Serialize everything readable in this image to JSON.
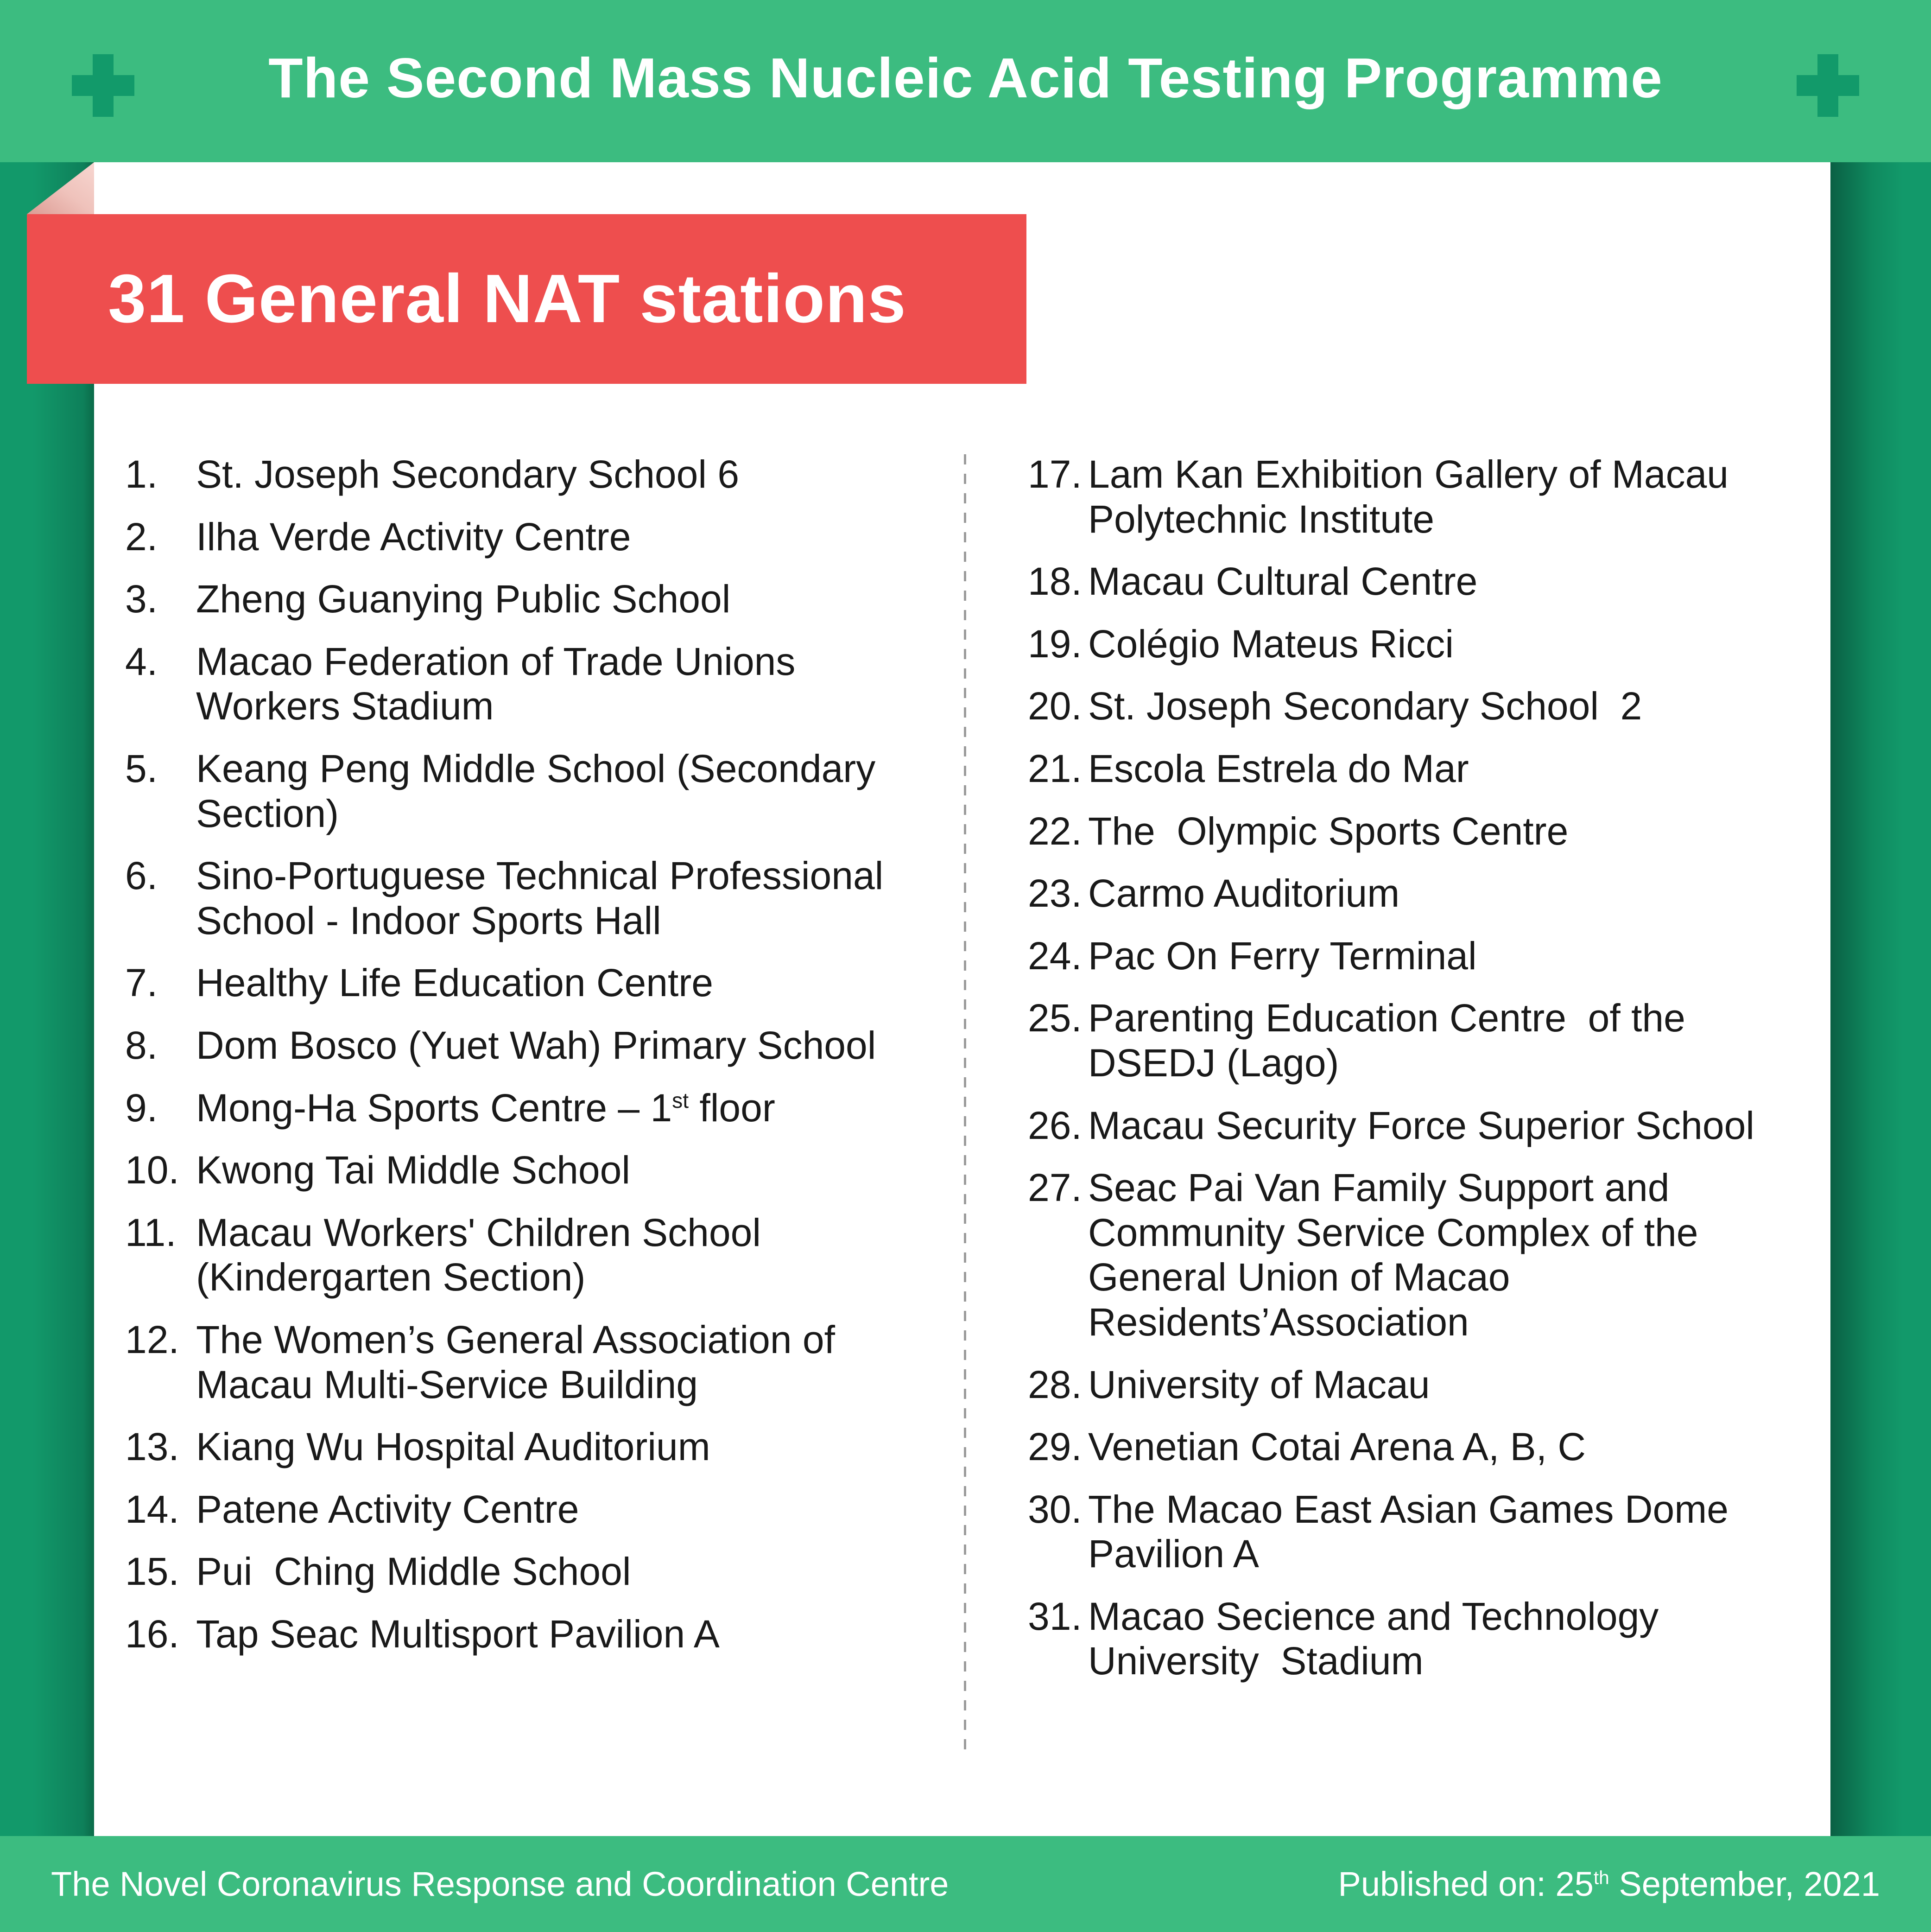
{
  "header": {
    "title": "The Second Mass Nucleic Acid Testing Programme"
  },
  "banner": {
    "title": "31 General NAT stations"
  },
  "list": {
    "left": [
      {
        "num": "1.",
        "text": "St. Joseph Secondary School 6"
      },
      {
        "num": "2.",
        "text": "Ilha Verde Activity Centre"
      },
      {
        "num": "3.",
        "text": "Zheng Guanying Public School"
      },
      {
        "num": "4.",
        "text": "Macao Federation of Trade Unions Workers Stadium"
      },
      {
        "num": "5.",
        "text": "Keang Peng Middle School (Secondary Section)"
      },
      {
        "num": "6.",
        "text": "Sino-Portuguese Technical Professional School - Indoor Sports Hall"
      },
      {
        "num": "7.",
        "text": "Healthy Life Education Centre"
      },
      {
        "num": "8.",
        "text": "Dom Bosco (Yuet Wah) Primary School"
      },
      {
        "num": "9.",
        "text": "Mong-Ha Sports Centre – 1^{st} floor"
      },
      {
        "num": "10.",
        "text": "Kwong Tai Middle School"
      },
      {
        "num": "11.",
        "text": "Macau Workers' Children School (Kindergarten Section)"
      },
      {
        "num": "12.",
        "text": "The Women’s General Association of Macau Multi-Service Building"
      },
      {
        "num": "13.",
        "text": "Kiang Wu Hospital Auditorium"
      },
      {
        "num": "14.",
        "text": "Patene Activity Centre"
      },
      {
        "num": "15.",
        "text": "Pui  Ching Middle School"
      },
      {
        "num": "16.",
        "text": "Tap Seac Multisport Pavilion A"
      }
    ],
    "right": [
      {
        "num": "17.",
        "text": "Lam Kan Exhibition Gallery of Macau Polytechnic Institute"
      },
      {
        "num": "18.",
        "text": "Macau Cultural Centre"
      },
      {
        "num": "19.",
        "text": "Colégio Mateus Ricci"
      },
      {
        "num": "20.",
        "text": "St. Joseph Secondary School  2"
      },
      {
        "num": "21.",
        "text": "Escola Estrela do Mar"
      },
      {
        "num": "22.",
        "text": "The  Olympic Sports Centre"
      },
      {
        "num": "23.",
        "text": "Carmo Auditorium"
      },
      {
        "num": "24.",
        "text": "Pac On Ferry Terminal"
      },
      {
        "num": "25.",
        "text": "Parenting Education Centre  of the DSEDJ (Lago)"
      },
      {
        "num": "26.",
        "text": "Macau Security Force Superior School"
      },
      {
        "num": "27.",
        "text": "Seac Pai Van Family Support and Community Service Complex of the General Union of Macao Residents’Association"
      },
      {
        "num": "28.",
        "text": "University of Macau"
      },
      {
        "num": "29.",
        "text": "Venetian Cotai Arena A, B, C"
      },
      {
        "num": "30.",
        "text": "The Macao East Asian Games Dome Pavilion A"
      },
      {
        "num": "31.",
        "text": "Macao Secience and Technology University  Stadium"
      }
    ]
  },
  "footer": {
    "left": "The Novel Coronavirus Response and Coordination Centre",
    "right": "Published on: 25^{th} September, 2021"
  },
  "icons": {
    "left": "medical-cross-icon",
    "right": "medical-cross-icon"
  },
  "colors": {
    "band_green": "#3CBC80",
    "background_green": "#12996A",
    "cross_green": "#129A6A",
    "banner_red": "#EE4E4E",
    "fold_pink_light": "#F7D6D0",
    "fold_pink_dark": "#DC9B93",
    "card_white": "#FFFFFF",
    "list_text": "#191919",
    "divider_gray": "#9B9B9B"
  }
}
